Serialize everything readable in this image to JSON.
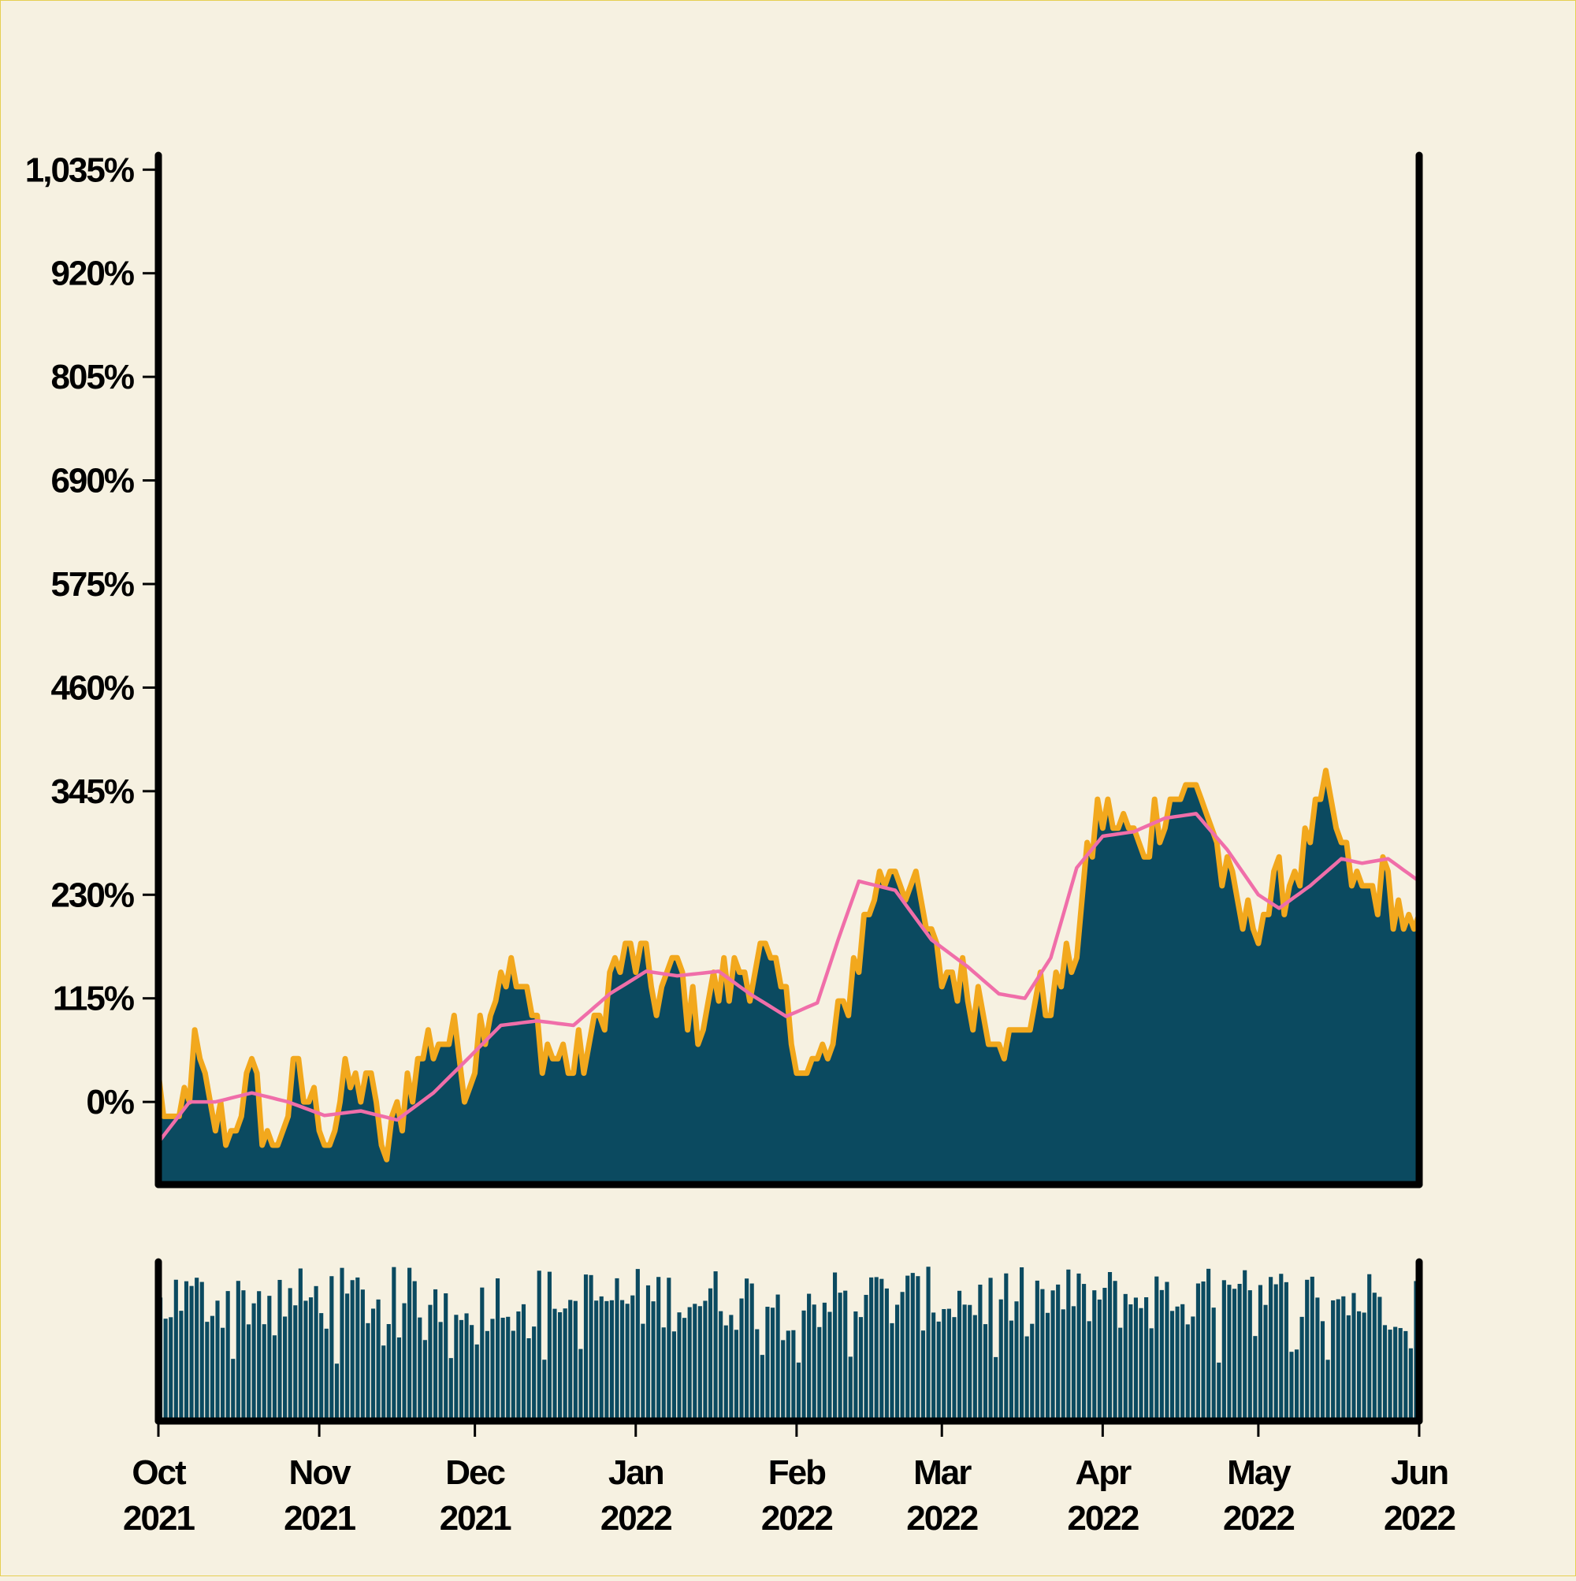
{
  "chart_data": [
    {
      "type": "area",
      "title": "",
      "xlabel": "",
      "ylabel": "",
      "ylim": [
        -90,
        1065
      ],
      "grid": false,
      "legend": "none",
      "yticks": [
        0,
        115,
        230,
        345,
        460,
        575,
        690,
        805,
        920,
        1035
      ],
      "ytick_labels": [
        "0%",
        "115%",
        "230%",
        "345%",
        "460%",
        "575%",
        "690%",
        "805%",
        "920%",
        "1,035%"
      ],
      "colors": {
        "area_fill": "#0b4a60",
        "area_edge": "#f2a81d",
        "moving_average": "#f06ea9"
      },
      "series": [
        {
          "type": "area",
          "x_anchors": [
            "2021-10-01",
            "2021-10-04",
            "2021-10-08",
            "2021-10-11",
            "2021-10-15",
            "2021-10-19",
            "2021-10-23",
            "2021-10-27",
            "2021-10-31",
            "2021-11-03",
            "2021-11-06",
            "2021-11-10",
            "2021-11-14",
            "2021-11-18",
            "2021-11-22",
            "2021-11-26",
            "2021-11-30",
            "2021-12-03",
            "2021-12-06",
            "2021-12-10",
            "2021-12-15",
            "2021-12-20",
            "2021-12-24",
            "2021-12-27",
            "2022-01-01",
            "2022-01-05",
            "2022-01-09",
            "2022-01-12",
            "2022-01-16",
            "2022-01-20",
            "2022-01-25",
            "2022-01-29",
            "2022-02-03",
            "2022-02-08",
            "2022-02-13",
            "2022-02-17",
            "2022-02-20",
            "2022-02-24",
            "2022-02-28",
            "2022-03-03",
            "2022-03-07",
            "2022-03-11",
            "2022-03-15",
            "2022-03-19",
            "2022-03-23",
            "2022-03-27",
            "2022-03-31",
            "2022-04-04",
            "2022-04-08",
            "2022-04-12",
            "2022-04-16",
            "2022-04-20",
            "2022-04-24",
            "2022-04-28",
            "2022-05-02",
            "2022-05-06",
            "2022-05-10",
            "2022-05-14",
            "2022-05-18",
            "2022-05-21",
            "2022-05-25",
            "2022-05-29",
            "2022-06-01"
          ],
          "y_anchors": [
            20,
            -50,
            50,
            -10,
            -30,
            30,
            -60,
            20,
            0,
            -40,
            10,
            30,
            -60,
            20,
            60,
            70,
            30,
            100,
            150,
            120,
            60,
            40,
            60,
            140,
            160,
            120,
            150,
            90,
            120,
            140,
            160,
            120,
            30,
            60,
            170,
            250,
            270,
            220,
            150,
            140,
            120,
            90,
            60,
            110,
            120,
            180,
            320,
            310,
            280,
            320,
            340,
            350,
            260,
            200,
            210,
            240,
            280,
            340,
            260,
            230,
            250,
            200,
            170
          ]
        },
        {
          "type": "line",
          "x_anchors": [
            "2021-10-01",
            "2021-10-07",
            "2021-10-12",
            "2021-10-19",
            "2021-10-26",
            "2021-11-02",
            "2021-11-09",
            "2021-11-16",
            "2021-11-23",
            "2021-11-30",
            "2021-12-06",
            "2021-12-13",
            "2021-12-20",
            "2021-12-27",
            "2022-01-03",
            "2022-01-09",
            "2022-01-17",
            "2022-01-23",
            "2022-01-30",
            "2022-02-05",
            "2022-02-09",
            "2022-02-13",
            "2022-02-20",
            "2022-02-27",
            "2022-03-06",
            "2022-03-12",
            "2022-03-17",
            "2022-03-22",
            "2022-03-27",
            "2022-04-01",
            "2022-04-07",
            "2022-04-13",
            "2022-04-19",
            "2022-04-25",
            "2022-05-01",
            "2022-05-05",
            "2022-05-11",
            "2022-05-17",
            "2022-05-21",
            "2022-05-26",
            "2022-06-01"
          ],
          "y_anchors": [
            -45,
            0,
            0,
            10,
            0,
            -15,
            -10,
            -20,
            10,
            50,
            85,
            90,
            85,
            120,
            145,
            140,
            145,
            120,
            95,
            110,
            180,
            245,
            235,
            180,
            150,
            120,
            115,
            160,
            260,
            295,
            300,
            315,
            320,
            280,
            230,
            215,
            240,
            270,
            265,
            270,
            245
          ]
        }
      ],
      "x_ticks": [
        {
          "month": "Oct",
          "year": "2021"
        },
        {
          "month": "Nov",
          "year": "2021"
        },
        {
          "month": "Dec",
          "year": "2021"
        },
        {
          "month": "Jan",
          "year": "2022"
        },
        {
          "month": "Feb",
          "year": "2022"
        },
        {
          "month": "Mar",
          "year": "2022"
        },
        {
          "month": "Apr",
          "year": "2022"
        },
        {
          "month": "May",
          "year": "2022"
        },
        {
          "month": "Jun",
          "year": "2022"
        }
      ]
    },
    {
      "type": "bar",
      "title": "",
      "ylabel": "",
      "grid": false,
      "color": "#0b4a60",
      "value_range": [
        0.55,
        0.96
      ],
      "note_values": "daily volume bars, one per day from Oct 2021 to Jun 2022, no axis labels"
    }
  ]
}
